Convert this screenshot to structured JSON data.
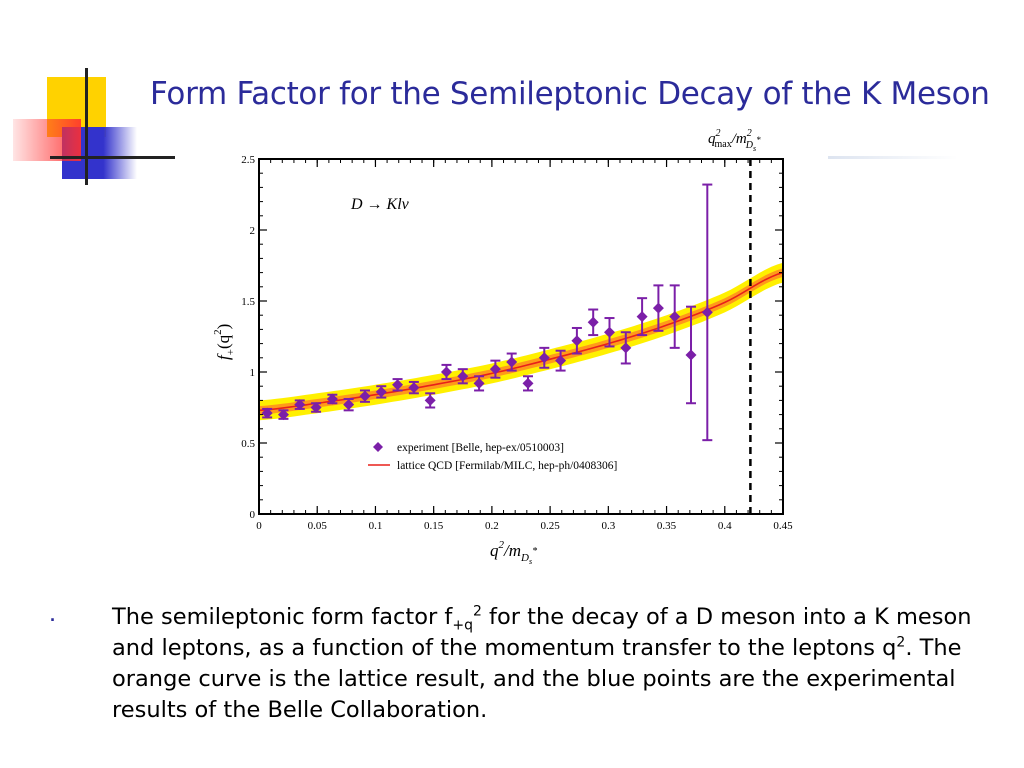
{
  "slide": {
    "title": "Form Factor for the Semileptonic Decay of the K Meson",
    "bullet_symbol": "·",
    "body": {
      "seg1": "The semileptonic form factor f",
      "sub1": "+q",
      "sup1": "2",
      "seg2": " for the decay of a D meson into a K meson and leptons, as a function of the momentum transfer to the leptons q",
      "sup2": "2",
      "seg3": ".  The orange curve is the lattice result, and the blue points are the experimental results of the Belle Collaboration."
    }
  },
  "colors": {
    "title": "#2b2b9a",
    "points": "#7b1fa8",
    "lattice_line": "#e8201a",
    "band_inner": "#ff9a1a",
    "band_outer": "#fff000",
    "deco_yellow": "#ffd200",
    "deco_red": "#ff3030",
    "deco_blue": "#3333cc"
  },
  "chart_data": {
    "type": "scatter",
    "x_label": "q",
    "x_label_sup": "2",
    "x_label_rest": "/m",
    "x_label_sub": "D",
    "x_label_subsub": "s",
    "x_label_star": "*",
    "y_label": "f",
    "y_label_sub": "+",
    "y_label_arg": "(q",
    "y_label_sup": "2",
    "y_label_close": ")",
    "annotation": "D → Klν",
    "vline_label": {
      "q": "q",
      "sup": "2",
      "sub": "max",
      "slash": "/m",
      "msup": "2",
      "msub": "D",
      "msubsub": "s",
      "star": "*"
    },
    "vline_x": 0.422,
    "xlim": [
      0,
      0.45
    ],
    "ylim": [
      0,
      2.5
    ],
    "x_ticks": [
      {
        "v": 0,
        "label": "0"
      },
      {
        "v": 0.05,
        "label": "0.05"
      },
      {
        "v": 0.1,
        "label": "0.1"
      },
      {
        "v": 0.15,
        "label": "0.15"
      },
      {
        "v": 0.2,
        "label": "0.2"
      },
      {
        "v": 0.25,
        "label": "0.25"
      },
      {
        "v": 0.3,
        "label": "0.3"
      },
      {
        "v": 0.35,
        "label": "0.35"
      },
      {
        "v": 0.4,
        "label": "0.4"
      },
      {
        "v": 0.45,
        "label": "0.45"
      }
    ],
    "y_ticks": [
      {
        "v": 0,
        "label": "0"
      },
      {
        "v": 0.5,
        "label": "0.5"
      },
      {
        "v": 1,
        "label": "1"
      },
      {
        "v": 1.5,
        "label": "1.5"
      },
      {
        "v": 2,
        "label": "2"
      },
      {
        "v": 2.5,
        "label": "2.5"
      }
    ],
    "legend": [
      {
        "label": "experiment [Belle, hep-ex/0510003]",
        "kind": "marker"
      },
      {
        "label": "lattice QCD [Fermilab/MILC, hep-ph/0408306]",
        "kind": "line"
      }
    ],
    "legend_position": "lower-center",
    "experiment": [
      {
        "x": 0.007,
        "y": 0.71,
        "err": 0.03
      },
      {
        "x": 0.021,
        "y": 0.7,
        "err": 0.03
      },
      {
        "x": 0.035,
        "y": 0.77,
        "err": 0.03
      },
      {
        "x": 0.049,
        "y": 0.75,
        "err": 0.03
      },
      {
        "x": 0.063,
        "y": 0.81,
        "err": 0.03
      },
      {
        "x": 0.077,
        "y": 0.77,
        "err": 0.04
      },
      {
        "x": 0.091,
        "y": 0.83,
        "err": 0.04
      },
      {
        "x": 0.105,
        "y": 0.86,
        "err": 0.04
      },
      {
        "x": 0.119,
        "y": 0.91,
        "err": 0.04
      },
      {
        "x": 0.133,
        "y": 0.89,
        "err": 0.04
      },
      {
        "x": 0.147,
        "y": 0.8,
        "err": 0.05
      },
      {
        "x": 0.161,
        "y": 1.0,
        "err": 0.05
      },
      {
        "x": 0.175,
        "y": 0.97,
        "err": 0.05
      },
      {
        "x": 0.189,
        "y": 0.92,
        "err": 0.05
      },
      {
        "x": 0.203,
        "y": 1.02,
        "err": 0.06
      },
      {
        "x": 0.217,
        "y": 1.07,
        "err": 0.06
      },
      {
        "x": 0.231,
        "y": 0.92,
        "err": 0.05
      },
      {
        "x": 0.245,
        "y": 1.1,
        "err": 0.07
      },
      {
        "x": 0.259,
        "y": 1.08,
        "err": 0.07
      },
      {
        "x": 0.273,
        "y": 1.22,
        "err": 0.09
      },
      {
        "x": 0.287,
        "y": 1.35,
        "err": 0.09
      },
      {
        "x": 0.301,
        "y": 1.28,
        "err": 0.1
      },
      {
        "x": 0.315,
        "y": 1.17,
        "err": 0.11
      },
      {
        "x": 0.329,
        "y": 1.39,
        "err": 0.13
      },
      {
        "x": 0.343,
        "y": 1.45,
        "err": 0.16
      },
      {
        "x": 0.357,
        "y": 1.39,
        "err": 0.22
      },
      {
        "x": 0.371,
        "y": 1.12,
        "err": 0.34
      },
      {
        "x": 0.385,
        "y": 1.42,
        "err": 0.9
      }
    ],
    "lattice_curve": {
      "x": [
        0,
        0.05,
        0.1,
        0.15,
        0.2,
        0.25,
        0.3,
        0.35,
        0.4,
        0.45
      ],
      "y": [
        0.73,
        0.78,
        0.84,
        0.91,
        0.99,
        1.09,
        1.2,
        1.33,
        1.49,
        1.7
      ],
      "band_inner": 0.03,
      "band_outer": 0.07
    }
  }
}
